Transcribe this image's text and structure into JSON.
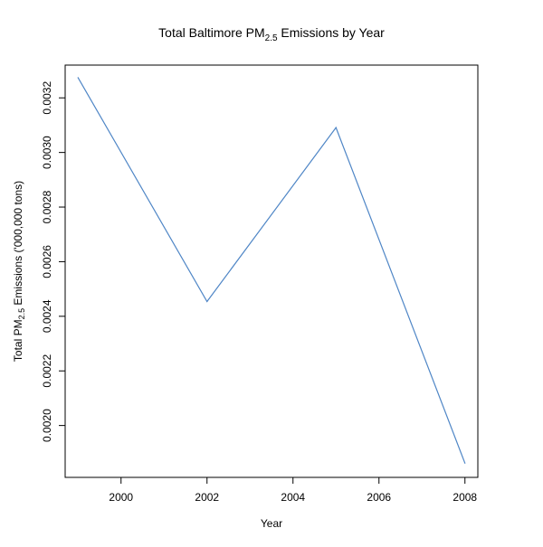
{
  "chart_data": {
    "type": "line",
    "title": {
      "prefix": "Total Baltimore PM",
      "subscript": "2.5",
      "suffix": " Emissions by Year"
    },
    "xlabel": "Year",
    "ylabel": {
      "prefix": "Total PM",
      "subscript": "2.5",
      "suffix": " Emissions ('000,000 tons)"
    },
    "x": [
      1999,
      2002,
      2005,
      2008
    ],
    "series": [
      {
        "values": [
          0.003274,
          0.002454,
          0.003091,
          0.001862
        ]
      }
    ],
    "xlim": [
      1998.7,
      2008.3
    ],
    "ylim": [
      0.00181,
      0.00332
    ],
    "x_ticks": [
      2000,
      2002,
      2004,
      2006,
      2008
    ],
    "x_tick_labels": [
      "2000",
      "2002",
      "2004",
      "2006",
      "2008"
    ],
    "y_ticks": [
      0.002,
      0.0022,
      0.0024,
      0.0026,
      0.0028,
      0.003,
      0.0032
    ],
    "y_tick_labels": [
      "0.0020",
      "0.0022",
      "0.0024",
      "0.0026",
      "0.0028",
      "0.0030",
      "0.0032"
    ],
    "grid": false,
    "legend": "none",
    "line_color": "#4f86c6"
  }
}
